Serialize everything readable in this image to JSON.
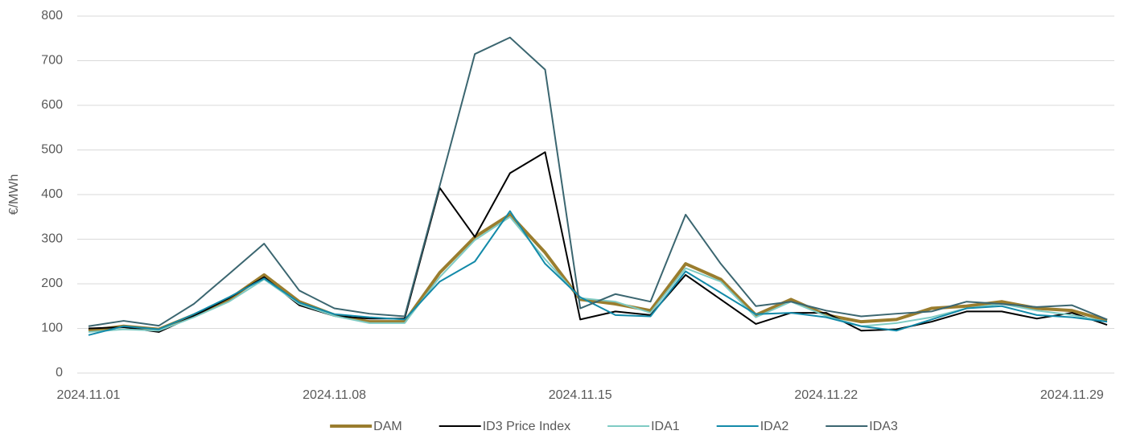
{
  "chart_data": {
    "type": "line",
    "y_label": "€/MWh",
    "categories": [
      "2024.11.01",
      null,
      null,
      null,
      null,
      null,
      null,
      "2024.11.08",
      null,
      null,
      null,
      null,
      null,
      null,
      "2024.11.15",
      null,
      null,
      null,
      null,
      null,
      null,
      "2024.11.22",
      null,
      null,
      null,
      null,
      null,
      null,
      "2024.11.29",
      null
    ],
    "ylim": [
      0,
      800
    ],
    "yticks": [
      0,
      100,
      200,
      300,
      400,
      500,
      600,
      700,
      800
    ],
    "grid": true,
    "legend": "bottom",
    "series": [
      {
        "name": "DAM",
        "color": "#9a7d2e",
        "values": [
          95,
          105,
          98,
          130,
          165,
          220,
          160,
          130,
          115,
          115,
          225,
          305,
          355,
          270,
          165,
          155,
          140,
          245,
          210,
          130,
          165,
          130,
          115,
          120,
          145,
          150,
          160,
          145,
          140,
          118
        ]
      },
      {
        "name": "ID3 Price Index",
        "color": "#000000",
        "values": [
          100,
          103,
          92,
          128,
          168,
          215,
          152,
          128,
          122,
          122,
          415,
          305,
          448,
          495,
          120,
          138,
          130,
          220,
          165,
          110,
          135,
          135,
          95,
          98,
          115,
          138,
          138,
          122,
          135,
          108
        ]
      },
      {
        "name": "IDA1",
        "color": "#7fcbc4",
        "values": [
          92,
          98,
          95,
          125,
          160,
          210,
          155,
          128,
          112,
          112,
          215,
          298,
          350,
          255,
          168,
          160,
          135,
          235,
          205,
          125,
          160,
          128,
          105,
          112,
          125,
          145,
          155,
          140,
          130,
          115
        ]
      },
      {
        "name": "IDA2",
        "color": "#138aa9",
        "values": [
          85,
          105,
          98,
          132,
          170,
          212,
          158,
          132,
          125,
          120,
          205,
          250,
          363,
          245,
          170,
          130,
          127,
          228,
          180,
          132,
          135,
          125,
          105,
          95,
          120,
          145,
          150,
          130,
          125,
          115
        ]
      },
      {
        "name": "IDA3",
        "color": "#3b6670",
        "values": [
          105,
          117,
          106,
          155,
          222,
          290,
          185,
          145,
          133,
          127,
          420,
          715,
          752,
          680,
          145,
          177,
          160,
          355,
          245,
          150,
          160,
          140,
          127,
          133,
          138,
          160,
          155,
          148,
          152,
          120
        ]
      }
    ]
  }
}
